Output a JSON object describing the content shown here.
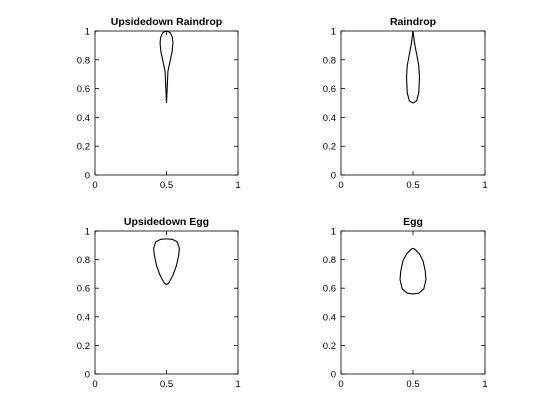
{
  "chart_data": [
    {
      "type": "line",
      "title": "Upsidedown Raindrop",
      "xlabel": "",
      "ylabel": "",
      "xlim": [
        0,
        1
      ],
      "ylim": [
        0,
        1
      ],
      "xticks": [
        "0",
        "0.5",
        "1"
      ],
      "yticks": [
        "0",
        "0.2",
        "0.4",
        "0.6",
        "0.8",
        "1"
      ],
      "grid": false,
      "series": [
        {
          "color": "#000000",
          "x": [
            0.5,
            0.525,
            0.54,
            0.545,
            0.54,
            0.525,
            0.51,
            0.5,
            0.49,
            0.475,
            0.46,
            0.455,
            0.46,
            0.475,
            0.5
          ],
          "y": [
            1.0,
            0.99,
            0.96,
            0.92,
            0.86,
            0.79,
            0.72,
            0.5,
            0.72,
            0.79,
            0.86,
            0.92,
            0.96,
            0.99,
            1.0
          ]
        }
      ]
    },
    {
      "type": "line",
      "title": "Raindrop",
      "xlabel": "",
      "ylabel": "",
      "xlim": [
        0,
        1
      ],
      "ylim": [
        0,
        1
      ],
      "xticks": [
        "0",
        "0.5",
        "1"
      ],
      "yticks": [
        "0",
        "0.2",
        "0.4",
        "0.6",
        "0.8",
        "1"
      ],
      "grid": false,
      "series": [
        {
          "color": "#000000",
          "x": [
            0.5,
            0.49,
            0.475,
            0.46,
            0.455,
            0.46,
            0.475,
            0.5,
            0.525,
            0.54,
            0.545,
            0.54,
            0.525,
            0.51,
            0.5
          ],
          "y": [
            1.0,
            0.92,
            0.84,
            0.76,
            0.68,
            0.57,
            0.515,
            0.5,
            0.515,
            0.57,
            0.68,
            0.76,
            0.84,
            0.92,
            1.0
          ]
        }
      ]
    },
    {
      "type": "line",
      "title": "Upsidedown Egg",
      "xlabel": "",
      "ylabel": "",
      "xlim": [
        0,
        1
      ],
      "ylim": [
        0,
        1
      ],
      "xticks": [
        "0",
        "0.5",
        "1"
      ],
      "yticks": [
        "0",
        "0.2",
        "0.4",
        "0.6",
        "0.8",
        "1"
      ],
      "grid": false,
      "series": [
        {
          "color": "#000000",
          "x": [
            0.5,
            0.54,
            0.575,
            0.59,
            0.585,
            0.57,
            0.545,
            0.515,
            0.5,
            0.485,
            0.455,
            0.43,
            0.415,
            0.41,
            0.425,
            0.46,
            0.5
          ],
          "y": [
            0.945,
            0.942,
            0.925,
            0.88,
            0.83,
            0.76,
            0.69,
            0.635,
            0.625,
            0.635,
            0.69,
            0.76,
            0.83,
            0.88,
            0.925,
            0.942,
            0.945
          ]
        }
      ]
    },
    {
      "type": "line",
      "title": "Egg",
      "xlabel": "",
      "ylabel": "",
      "xlim": [
        0,
        1
      ],
      "ylim": [
        0,
        1
      ],
      "xticks": [
        "0",
        "0.5",
        "1"
      ],
      "yticks": [
        "0",
        "0.2",
        "0.4",
        "0.6",
        "0.8",
        "1"
      ],
      "grid": false,
      "series": [
        {
          "color": "#000000",
          "x": [
            0.5,
            0.485,
            0.455,
            0.43,
            0.415,
            0.41,
            0.425,
            0.46,
            0.5,
            0.54,
            0.575,
            0.59,
            0.585,
            0.57,
            0.545,
            0.515,
            0.5
          ],
          "y": [
            0.88,
            0.87,
            0.84,
            0.79,
            0.72,
            0.66,
            0.595,
            0.565,
            0.56,
            0.565,
            0.595,
            0.66,
            0.72,
            0.79,
            0.84,
            0.87,
            0.88
          ]
        }
      ]
    }
  ]
}
